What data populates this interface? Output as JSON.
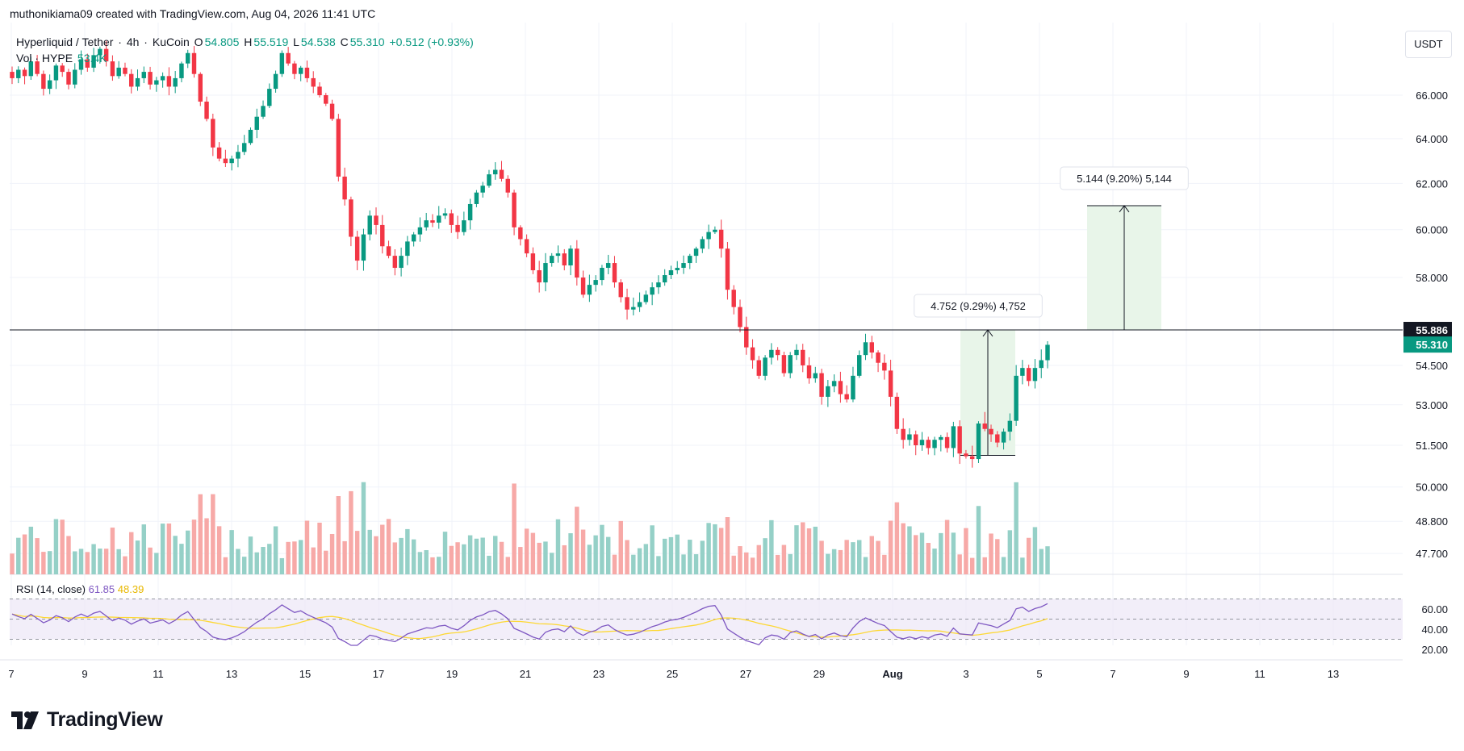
{
  "attribution": "muthonikiama09 created with TradingView.com, Aug 04, 2026 11:41 UTC",
  "legend": {
    "symbol": "Hyperliquid / Tether",
    "interval": "4h",
    "exchange": "KuCoin",
    "o_label": "O",
    "o_value": "54.805",
    "h_label": "H",
    "h_value": "55.519",
    "l_label": "L",
    "l_value": "54.538",
    "c_label": "C",
    "c_value": "55.310",
    "change": "+0.512 (+0.93%)",
    "vol_label": "Vol · HYPE",
    "vol_value": "53.4K"
  },
  "rsi_legend": {
    "label": "RSI (14, close)",
    "rsi_value": "61.85",
    "ma_value": "48.39"
  },
  "currency": "USDT",
  "logo_text": "TradingView",
  "colors": {
    "up": "#089981",
    "down": "#f23645",
    "vol_up": "#95d0c7",
    "vol_down": "#f7a9a7",
    "rsi": "#7e57c2",
    "rsi_ma": "#fdd835",
    "measure_fill": "#e8f5e9"
  },
  "chart_data": {
    "type": "candlestick",
    "title": "Hyperliquid / Tether · 4h · KuCoin",
    "y_ticks": [
      "66.000",
      "64.000",
      "62.000",
      "60.000",
      "58.000",
      "54.500",
      "53.000",
      "51.500",
      "50.000",
      "48.800",
      "47.700"
    ],
    "x_ticks": [
      "7",
      "9",
      "11",
      "13",
      "15",
      "17",
      "19",
      "21",
      "23",
      "25",
      "27",
      "29",
      "Aug",
      "3",
      "5",
      "7",
      "9",
      "11",
      "13"
    ],
    "scale": "log",
    "horizontal_line": {
      "value": 55.886,
      "label": "55.886"
    },
    "last_price": {
      "value": 55.31,
      "label": "55.310"
    },
    "measures": [
      {
        "label": "4.752 (9.29%) 4,752",
        "from": 51.134,
        "to": 55.886
      },
      {
        "label": "5.144 (9.20%) 5,144",
        "from": 55.886,
        "to": 61.03
      }
    ],
    "closes": [
      66.8,
      67.2,
      66.9,
      67.6,
      67.0,
      66.3,
      66.7,
      67.4,
      67.1,
      66.5,
      67.2,
      67.7,
      67.3,
      67.9,
      68.2,
      67.6,
      66.9,
      67.3,
      67.0,
      66.4,
      66.8,
      67.1,
      66.5,
      66.7,
      66.9,
      66.4,
      66.8,
      67.5,
      68.0,
      67.0,
      65.7,
      64.9,
      63.6,
      63.1,
      62.9,
      63.1,
      63.4,
      63.8,
      64.4,
      65.0,
      65.5,
      66.3,
      67.0,
      68.0,
      67.5,
      67.0,
      67.3,
      66.8,
      66.4,
      66.0,
      65.6,
      64.9,
      62.3,
      61.3,
      59.7,
      58.7,
      59.8,
      60.6,
      60.2,
      59.3,
      58.9,
      58.4,
      58.9,
      59.5,
      59.8,
      60.1,
      60.4,
      60.3,
      60.6,
      60.7,
      60.2,
      59.9,
      60.4,
      61.1,
      61.6,
      61.9,
      62.4,
      62.6,
      62.2,
      61.6,
      60.1,
      59.6,
      59.0,
      58.3,
      57.8,
      58.6,
      58.9,
      59.0,
      58.5,
      59.2,
      58.0,
      57.3,
      57.7,
      57.9,
      58.4,
      58.6,
      57.8,
      57.2,
      56.7,
      56.8,
      57.0,
      57.3,
      57.6,
      57.8,
      58.1,
      58.3,
      58.4,
      58.6,
      58.9,
      59.2,
      59.6,
      59.9,
      60.0,
      59.2,
      57.5,
      56.8,
      56.0,
      55.2,
      54.7,
      54.1,
      54.8,
      55.1,
      54.9,
      54.2,
      54.9,
      55.1,
      54.5,
      54.0,
      54.2,
      53.3,
      53.7,
      53.9,
      53.4,
      53.2,
      54.1,
      54.9,
      55.4,
      55.0,
      54.6,
      54.3,
      53.3,
      52.1,
      51.7,
      51.9,
      51.5,
      51.7,
      51.4,
      51.7,
      51.8,
      51.4,
      52.2,
      51.2,
      51.1,
      51.0,
      52.3,
      52.1,
      51.9,
      51.6,
      52.0,
      52.4,
      54.1,
      54.4,
      53.9,
      54.4,
      54.7,
      55.3
    ]
  }
}
